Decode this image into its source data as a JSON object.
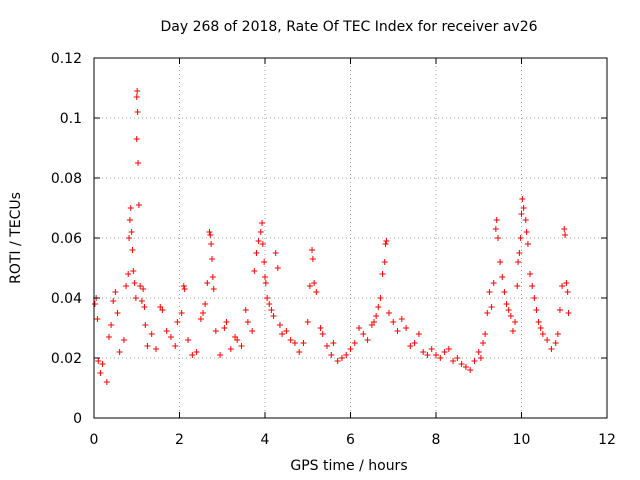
{
  "chart_data": {
    "type": "scatter",
    "title": "Day 268 of 2018, Rate Of TEC Index for receiver av26",
    "xlabel": "GPS time / hours",
    "ylabel": "ROTI / TECUs",
    "xlim": [
      0,
      12
    ],
    "ylim": [
      0,
      0.12
    ],
    "xticks": [
      0,
      2,
      4,
      6,
      8,
      10,
      12
    ],
    "xtick_labels": [
      "0",
      "2",
      "4",
      "6",
      "8",
      "10",
      "12"
    ],
    "yticks": [
      0,
      0.02,
      0.04,
      0.06,
      0.08,
      0.1,
      0.12
    ],
    "ytick_labels": [
      "0",
      "0.02",
      "0.04",
      "0.06",
      "0.08",
      "0.1",
      "0.12"
    ],
    "grid": true,
    "marker": "plus",
    "color": "#ff0000",
    "series": [
      {
        "name": "ROTI",
        "points": [
          [
            0.02,
            0.038
          ],
          [
            0.05,
            0.04
          ],
          [
            0.08,
            0.033
          ],
          [
            0.1,
            0.019
          ],
          [
            0.15,
            0.015
          ],
          [
            0.2,
            0.018
          ],
          [
            0.3,
            0.012
          ],
          [
            0.35,
            0.027
          ],
          [
            0.4,
            0.031
          ],
          [
            0.45,
            0.039
          ],
          [
            0.5,
            0.042
          ],
          [
            0.55,
            0.035
          ],
          [
            0.6,
            0.022
          ],
          [
            0.7,
            0.026
          ],
          [
            0.75,
            0.044
          ],
          [
            0.8,
            0.048
          ],
          [
            0.82,
            0.06
          ],
          [
            0.84,
            0.066
          ],
          [
            0.86,
            0.07
          ],
          [
            0.88,
            0.062
          ],
          [
            0.9,
            0.056
          ],
          [
            0.92,
            0.049
          ],
          [
            0.95,
            0.045
          ],
          [
            0.98,
            0.04
          ],
          [
            1.0,
            0.107
          ],
          [
            1.01,
            0.109
          ],
          [
            1.02,
            0.102
          ],
          [
            1.0,
            0.093
          ],
          [
            1.03,
            0.085
          ],
          [
            1.05,
            0.071
          ],
          [
            1.08,
            0.044
          ],
          [
            1.12,
            0.039
          ],
          [
            1.15,
            0.043
          ],
          [
            1.18,
            0.037
          ],
          [
            1.2,
            0.031
          ],
          [
            1.25,
            0.024
          ],
          [
            1.35,
            0.028
          ],
          [
            1.45,
            0.023
          ],
          [
            1.55,
            0.037
          ],
          [
            1.6,
            0.036
          ],
          [
            1.7,
            0.029
          ],
          [
            1.8,
            0.027
          ],
          [
            1.9,
            0.024
          ],
          [
            1.95,
            0.032
          ],
          [
            2.05,
            0.035
          ],
          [
            2.1,
            0.044
          ],
          [
            2.12,
            0.043
          ],
          [
            2.2,
            0.026
          ],
          [
            2.3,
            0.021
          ],
          [
            2.4,
            0.022
          ],
          [
            2.5,
            0.033
          ],
          [
            2.55,
            0.035
          ],
          [
            2.6,
            0.038
          ],
          [
            2.65,
            0.045
          ],
          [
            2.7,
            0.062
          ],
          [
            2.72,
            0.061
          ],
          [
            2.74,
            0.058
          ],
          [
            2.76,
            0.053
          ],
          [
            2.78,
            0.047
          ],
          [
            2.8,
            0.043
          ],
          [
            2.85,
            0.029
          ],
          [
            2.95,
            0.021
          ],
          [
            3.05,
            0.03
          ],
          [
            3.1,
            0.032
          ],
          [
            3.2,
            0.023
          ],
          [
            3.3,
            0.027
          ],
          [
            3.35,
            0.026
          ],
          [
            3.45,
            0.024
          ],
          [
            3.55,
            0.036
          ],
          [
            3.6,
            0.032
          ],
          [
            3.7,
            0.029
          ],
          [
            3.75,
            0.049
          ],
          [
            3.8,
            0.055
          ],
          [
            3.85,
            0.059
          ],
          [
            3.9,
            0.062
          ],
          [
            3.93,
            0.065
          ],
          [
            3.95,
            0.058
          ],
          [
            3.98,
            0.052
          ],
          [
            4.0,
            0.047
          ],
          [
            4.02,
            0.045
          ],
          [
            4.05,
            0.04
          ],
          [
            4.1,
            0.038
          ],
          [
            4.15,
            0.036
          ],
          [
            4.2,
            0.034
          ],
          [
            4.25,
            0.055
          ],
          [
            4.3,
            0.05
          ],
          [
            4.35,
            0.031
          ],
          [
            4.4,
            0.028
          ],
          [
            4.5,
            0.029
          ],
          [
            4.6,
            0.026
          ],
          [
            4.7,
            0.025
          ],
          [
            4.8,
            0.022
          ],
          [
            4.9,
            0.025
          ],
          [
            5.0,
            0.032
          ],
          [
            5.05,
            0.044
          ],
          [
            5.1,
            0.056
          ],
          [
            5.12,
            0.053
          ],
          [
            5.15,
            0.045
          ],
          [
            5.2,
            0.042
          ],
          [
            5.3,
            0.03
          ],
          [
            5.35,
            0.028
          ],
          [
            5.45,
            0.024
          ],
          [
            5.55,
            0.021
          ],
          [
            5.6,
            0.025
          ],
          [
            5.7,
            0.019
          ],
          [
            5.8,
            0.02
          ],
          [
            5.9,
            0.021
          ],
          [
            6.0,
            0.023
          ],
          [
            6.1,
            0.025
          ],
          [
            6.2,
            0.03
          ],
          [
            6.3,
            0.028
          ],
          [
            6.4,
            0.026
          ],
          [
            6.5,
            0.031
          ],
          [
            6.55,
            0.032
          ],
          [
            6.6,
            0.034
          ],
          [
            6.65,
            0.037
          ],
          [
            6.7,
            0.04
          ],
          [
            6.75,
            0.048
          ],
          [
            6.8,
            0.052
          ],
          [
            6.82,
            0.058
          ],
          [
            6.84,
            0.059
          ],
          [
            6.9,
            0.035
          ],
          [
            7.0,
            0.032
          ],
          [
            7.1,
            0.029
          ],
          [
            7.2,
            0.033
          ],
          [
            7.3,
            0.03
          ],
          [
            7.4,
            0.024
          ],
          [
            7.5,
            0.025
          ],
          [
            7.6,
            0.028
          ],
          [
            7.7,
            0.022
          ],
          [
            7.8,
            0.021
          ],
          [
            7.9,
            0.023
          ],
          [
            8.0,
            0.021
          ],
          [
            8.1,
            0.02
          ],
          [
            8.2,
            0.022
          ],
          [
            8.3,
            0.023
          ],
          [
            8.4,
            0.019
          ],
          [
            8.5,
            0.02
          ],
          [
            8.6,
            0.018
          ],
          [
            8.7,
            0.017
          ],
          [
            8.8,
            0.016
          ],
          [
            8.9,
            0.019
          ],
          [
            9.0,
            0.022
          ],
          [
            9.05,
            0.02
          ],
          [
            9.1,
            0.025
          ],
          [
            9.15,
            0.028
          ],
          [
            9.2,
            0.035
          ],
          [
            9.25,
            0.042
          ],
          [
            9.3,
            0.037
          ],
          [
            9.35,
            0.045
          ],
          [
            9.4,
            0.063
          ],
          [
            9.42,
            0.066
          ],
          [
            9.45,
            0.06
          ],
          [
            9.5,
            0.052
          ],
          [
            9.55,
            0.047
          ],
          [
            9.6,
            0.042
          ],
          [
            9.65,
            0.038
          ],
          [
            9.7,
            0.036
          ],
          [
            9.75,
            0.034
          ],
          [
            9.8,
            0.029
          ],
          [
            9.85,
            0.032
          ],
          [
            9.9,
            0.044
          ],
          [
            9.92,
            0.052
          ],
          [
            9.95,
            0.055
          ],
          [
            9.98,
            0.06
          ],
          [
            10.0,
            0.068
          ],
          [
            10.02,
            0.073
          ],
          [
            10.05,
            0.07
          ],
          [
            10.1,
            0.066
          ],
          [
            10.12,
            0.062
          ],
          [
            10.15,
            0.058
          ],
          [
            10.2,
            0.048
          ],
          [
            10.25,
            0.044
          ],
          [
            10.3,
            0.04
          ],
          [
            10.35,
            0.036
          ],
          [
            10.4,
            0.032
          ],
          [
            10.45,
            0.03
          ],
          [
            10.5,
            0.028
          ],
          [
            10.6,
            0.026
          ],
          [
            10.7,
            0.023
          ],
          [
            10.8,
            0.025
          ],
          [
            10.85,
            0.028
          ],
          [
            10.9,
            0.036
          ],
          [
            10.95,
            0.044
          ],
          [
            11.0,
            0.063
          ],
          [
            11.02,
            0.061
          ],
          [
            11.05,
            0.045
          ],
          [
            11.08,
            0.042
          ],
          [
            11.1,
            0.035
          ]
        ]
      }
    ]
  }
}
